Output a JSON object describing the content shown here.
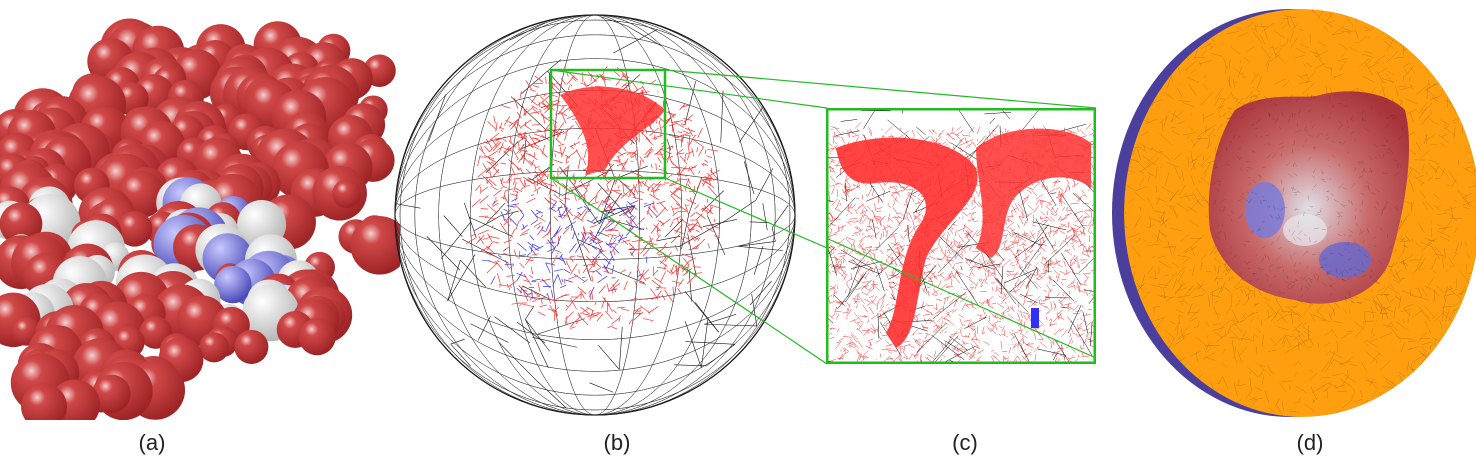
{
  "captions": {
    "a": "(a)",
    "b": "(b)",
    "c": "(c)",
    "d": "(d)"
  },
  "colors": {
    "molecule_red": "#c0393b",
    "molecule_white": "#e6e6e6",
    "molecule_blue": "#6b6bd6",
    "mesh_red": "#ff3030",
    "mesh_blue": "#3030ff",
    "mesh_black": "#111111",
    "zoom_green": "#22bb22",
    "disk_orange": "#ff9f0f",
    "disk_side_purple": "#4b3f9e"
  }
}
